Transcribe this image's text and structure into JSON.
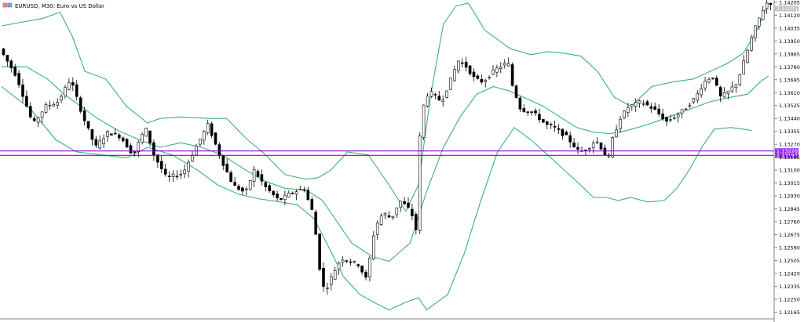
{
  "header": {
    "symbol_text": "EURUSD, M30:  Euro vs US Dollar"
  },
  "chart_data": {
    "type": "candlestick",
    "symbol": "EURUSD",
    "timeframe": "M30",
    "ylim": [
      1.121,
      1.1422
    ],
    "y_ticks": [
      "1.14205",
      "1.14120",
      "1.14035",
      "1.13950",
      "1.13865",
      "1.13780",
      "1.13695",
      "1.13610",
      "1.13525",
      "1.13440",
      "1.13355",
      "1.13270",
      "1.13185",
      "1.13100",
      "1.13015",
      "1.12930",
      "1.12845",
      "1.12760",
      "1.12675",
      "1.12590",
      "1.12505",
      "1.12420",
      "1.12335",
      "1.12250",
      "1.12165"
    ],
    "y_tick_values": [
      1.14205,
      1.1412,
      1.14035,
      1.1395,
      1.13865,
      1.1378,
      1.13695,
      1.1361,
      1.13525,
      1.1344,
      1.13355,
      1.1327,
      1.13185,
      1.131,
      1.13015,
      1.1293,
      1.12845,
      1.1276,
      1.12675,
      1.1259,
      1.12505,
      1.1242,
      1.12335,
      1.1225,
      1.12165
    ],
    "price_levels": [
      {
        "label": "1.13226",
        "value": 1.13226
      },
      {
        "label": "1.13197",
        "value": 1.13197
      }
    ],
    "current_price_label": "1.14205",
    "candle_count": 200,
    "price_path": [
      [
        0,
        1.139
      ],
      [
        8,
        1.1372
      ],
      [
        16,
        1.134
      ],
      [
        22,
        1.1352
      ],
      [
        28,
        1.1355
      ],
      [
        34,
        1.137
      ],
      [
        40,
        1.1345
      ],
      [
        46,
        1.1325
      ],
      [
        52,
        1.1335
      ],
      [
        58,
        1.1332
      ],
      [
        64,
        1.132
      ],
      [
        70,
        1.1338
      ],
      [
        74,
        1.132
      ],
      [
        80,
        1.1305
      ],
      [
        88,
        1.1308
      ],
      [
        94,
        1.1325
      ],
      [
        100,
        1.134
      ],
      [
        106,
        1.1318
      ],
      [
        112,
        1.13
      ],
      [
        118,
        1.1295
      ],
      [
        122,
        1.131
      ],
      [
        128,
        1.1298
      ],
      [
        134,
        1.129
      ],
      [
        140,
        1.1295
      ],
      [
        146,
        1.1298
      ],
      [
        150,
        1.1283
      ],
      [
        152,
        1.1265
      ],
      [
        154,
        1.124
      ],
      [
        156,
        1.123
      ],
      [
        160,
        1.1242
      ],
      [
        164,
        1.1252
      ],
      [
        168,
        1.125
      ],
      [
        172,
        1.1248
      ],
      [
        176,
        1.1238
      ],
      [
        180,
        1.1272
      ],
      [
        184,
        1.1282
      ],
      [
        188,
        1.1278
      ],
      [
        192,
        1.129
      ],
      [
        196,
        1.1285
      ],
      [
        198,
        1.128
      ],
      [
        200,
        1.127
      ],
      [
        202,
        1.1345
      ],
      [
        204,
        1.1355
      ],
      [
        206,
        1.1362
      ],
      [
        212,
        1.1355
      ],
      [
        216,
        1.1368
      ],
      [
        220,
        1.1382
      ],
      [
        224,
        1.1378
      ],
      [
        228,
        1.137
      ],
      [
        232,
        1.1368
      ],
      [
        236,
        1.1374
      ],
      [
        240,
        1.1378
      ],
      [
        244,
        1.1381
      ],
      [
        246,
        1.1366
      ],
      [
        250,
        1.135
      ],
      [
        256,
        1.1348
      ],
      [
        262,
        1.134
      ],
      [
        266,
        1.1338
      ],
      [
        272,
        1.1332
      ],
      [
        278,
        1.1322
      ],
      [
        282,
        1.1324
      ],
      [
        286,
        1.133
      ],
      [
        290,
        1.1322
      ],
      [
        292,
        1.1316
      ],
      [
        294,
        1.133
      ],
      [
        298,
        1.1345
      ],
      [
        302,
        1.1352
      ],
      [
        308,
        1.1355
      ],
      [
        314,
        1.135
      ],
      [
        320,
        1.1342
      ],
      [
        326,
        1.1347
      ],
      [
        330,
        1.1352
      ],
      [
        334,
        1.1358
      ],
      [
        338,
        1.1368
      ],
      [
        342,
        1.1372
      ],
      [
        346,
        1.1358
      ],
      [
        350,
        1.1362
      ],
      [
        354,
        1.1368
      ],
      [
        358,
        1.1385
      ],
      [
        362,
        1.1402
      ],
      [
        366,
        1.1415
      ],
      [
        368,
        1.142
      ]
    ],
    "upper_band": [
      [
        0,
        1.1405
      ],
      [
        20,
        1.141
      ],
      [
        28,
        1.1414
      ],
      [
        34,
        1.1398
      ],
      [
        40,
        1.1375
      ],
      [
        50,
        1.137
      ],
      [
        60,
        1.1352
      ],
      [
        70,
        1.1341
      ],
      [
        76,
        1.1344
      ],
      [
        86,
        1.1345
      ],
      [
        100,
        1.1344
      ],
      [
        108,
        1.1344
      ],
      [
        118,
        1.133
      ],
      [
        126,
        1.1321
      ],
      [
        136,
        1.1307
      ],
      [
        146,
        1.1304
      ],
      [
        152,
        1.1305
      ],
      [
        158,
        1.131
      ],
      [
        166,
        1.1322
      ],
      [
        176,
        1.132
      ],
      [
        186,
        1.13
      ],
      [
        194,
        1.1283
      ],
      [
        200,
        1.13
      ],
      [
        206,
        1.136
      ],
      [
        212,
        1.1406
      ],
      [
        218,
        1.1418
      ],
      [
        224,
        1.142
      ],
      [
        232,
        1.1402
      ],
      [
        244,
        1.139
      ],
      [
        254,
        1.1386
      ],
      [
        262,
        1.1388
      ],
      [
        270,
        1.1387
      ],
      [
        278,
        1.1385
      ],
      [
        286,
        1.1375
      ],
      [
        294,
        1.1358
      ],
      [
        302,
        1.1352
      ],
      [
        312,
        1.1365
      ],
      [
        322,
        1.1368
      ],
      [
        332,
        1.137
      ],
      [
        340,
        1.1375
      ],
      [
        348,
        1.138
      ],
      [
        356,
        1.1387
      ],
      [
        362,
        1.1401
      ],
      [
        368,
        1.142
      ]
    ],
    "middle_band": [
      [
        0,
        1.1378
      ],
      [
        12,
        1.1378
      ],
      [
        22,
        1.137
      ],
      [
        30,
        1.136
      ],
      [
        38,
        1.1352
      ],
      [
        46,
        1.1344
      ],
      [
        56,
        1.1336
      ],
      [
        66,
        1.133
      ],
      [
        76,
        1.1325
      ],
      [
        86,
        1.1328
      ],
      [
        96,
        1.1325
      ],
      [
        106,
        1.132
      ],
      [
        116,
        1.1311
      ],
      [
        126,
        1.1303
      ],
      [
        136,
        1.1298
      ],
      [
        146,
        1.1297
      ],
      [
        154,
        1.129
      ],
      [
        160,
        1.1278
      ],
      [
        168,
        1.1262
      ],
      [
        178,
        1.1253
      ],
      [
        186,
        1.125
      ],
      [
        196,
        1.1262
      ],
      [
        204,
        1.1296
      ],
      [
        212,
        1.1325
      ],
      [
        220,
        1.1345
      ],
      [
        228,
        1.136
      ],
      [
        236,
        1.1365
      ],
      [
        244,
        1.1362
      ],
      [
        252,
        1.1357
      ],
      [
        260,
        1.1352
      ],
      [
        268,
        1.1345
      ],
      [
        276,
        1.1338
      ],
      [
        284,
        1.1335
      ],
      [
        292,
        1.1334
      ],
      [
        300,
        1.1336
      ],
      [
        310,
        1.134
      ],
      [
        320,
        1.1345
      ],
      [
        330,
        1.135
      ],
      [
        340,
        1.1355
      ],
      [
        350,
        1.1358
      ],
      [
        358,
        1.136
      ],
      [
        364,
        1.1368
      ],
      [
        368,
        1.1372
      ]
    ],
    "lower_band": [
      [
        0,
        1.1365
      ],
      [
        14,
        1.135
      ],
      [
        26,
        1.133
      ],
      [
        36,
        1.1322
      ],
      [
        48,
        1.132
      ],
      [
        60,
        1.1318
      ],
      [
        70,
        1.1325
      ],
      [
        82,
        1.132
      ],
      [
        94,
        1.131
      ],
      [
        104,
        1.13
      ],
      [
        114,
        1.1294
      ],
      [
        124,
        1.1291
      ],
      [
        134,
        1.1289
      ],
      [
        142,
        1.1287
      ],
      [
        150,
        1.1278
      ],
      [
        156,
        1.1262
      ],
      [
        164,
        1.124
      ],
      [
        172,
        1.1228
      ],
      [
        180,
        1.1222
      ],
      [
        186,
        1.1218
      ],
      [
        194,
        1.1223
      ],
      [
        200,
        1.1226
      ],
      [
        204,
        1.1218
      ],
      [
        208,
        1.1222
      ],
      [
        214,
        1.1228
      ],
      [
        222,
        1.1255
      ],
      [
        230,
        1.129
      ],
      [
        238,
        1.1322
      ],
      [
        246,
        1.1338
      ],
      [
        254,
        1.133
      ],
      [
        262,
        1.132
      ],
      [
        270,
        1.131
      ],
      [
        278,
        1.13
      ],
      [
        284,
        1.1292
      ],
      [
        290,
        1.1292
      ],
      [
        296,
        1.129
      ],
      [
        302,
        1.1292
      ],
      [
        310,
        1.1289
      ],
      [
        318,
        1.129
      ],
      [
        324,
        1.1298
      ],
      [
        330,
        1.131
      ],
      [
        336,
        1.1325
      ],
      [
        342,
        1.1337
      ],
      [
        350,
        1.1338
      ],
      [
        356,
        1.1337
      ],
      [
        360,
        1.1336
      ]
    ]
  },
  "colors": {
    "background": "#ffffff",
    "band": "#3cb371",
    "candle": "#000000",
    "level_line": "#9400d3",
    "level_tag": "#9b30ff",
    "axis": "#808080"
  },
  "icons": {
    "header": "symbol-icon"
  }
}
